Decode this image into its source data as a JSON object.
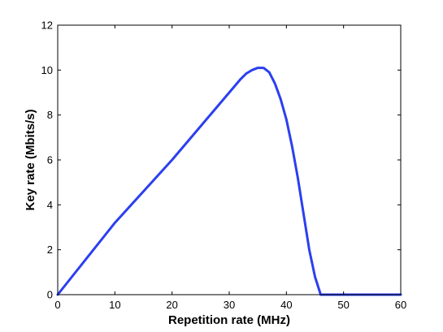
{
  "chart_data": {
    "type": "line",
    "title": "",
    "xlabel": "Repetition rate (MHz)",
    "ylabel": "Key rate (Mbits/s)",
    "xlim": [
      0,
      60
    ],
    "ylim": [
      0,
      12
    ],
    "x_ticks": [
      0,
      10,
      20,
      30,
      40,
      50,
      60
    ],
    "y_ticks": [
      0,
      2,
      4,
      6,
      8,
      10,
      12
    ],
    "x_tick_labels": [
      "0",
      "10",
      "20",
      "30",
      "40",
      "50",
      "60"
    ],
    "y_tick_labels": [
      "0",
      "2",
      "4",
      "6",
      "8",
      "10",
      "12"
    ],
    "grid": false,
    "legend": "none",
    "line_color": "#2b3ff0",
    "series": [
      {
        "x": [
          0,
          5,
          10,
          15,
          20,
          25,
          28,
          30,
          32,
          33,
          34,
          35,
          36,
          37,
          38,
          39,
          40,
          41,
          42,
          43,
          44,
          45,
          46,
          48,
          50,
          55,
          60
        ],
        "y": [
          0,
          1.6,
          3.2,
          4.6,
          6.0,
          7.5,
          8.4,
          9.0,
          9.6,
          9.85,
          10.0,
          10.1,
          10.1,
          9.9,
          9.4,
          8.7,
          7.8,
          6.6,
          5.2,
          3.6,
          2.0,
          0.8,
          0,
          0,
          0,
          0,
          0
        ]
      }
    ]
  }
}
